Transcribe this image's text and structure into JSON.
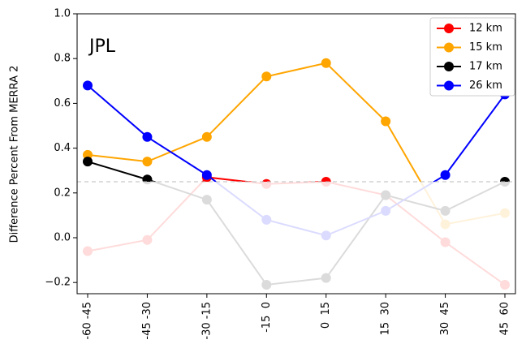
{
  "chart_data": {
    "type": "line",
    "annotation": "JPL",
    "y_label": "Difference Percent From MERRA 2",
    "categories": [
      "-60 -45",
      "-45 -30",
      "-30 -15",
      "-15  0",
      "0  15",
      "15  30",
      "30  45",
      "45  60"
    ],
    "series": [
      {
        "name": "12 km",
        "color": "#ff0000",
        "values": [
          -0.06,
          -0.01,
          0.27,
          0.24,
          0.25,
          0.19,
          -0.02,
          -0.21
        ]
      },
      {
        "name": "15 km",
        "color": "#ffa500",
        "values": [
          0.37,
          0.34,
          0.45,
          0.72,
          0.78,
          0.52,
          0.06,
          0.11
        ]
      },
      {
        "name": "17 km",
        "color": "#000000",
        "values": [
          0.34,
          0.26,
          0.17,
          -0.21,
          -0.18,
          0.19,
          0.12,
          0.25
        ]
      },
      {
        "name": "26 km",
        "color": "#0000ff",
        "values": [
          0.68,
          0.45,
          0.28,
          0.08,
          0.01,
          0.12,
          0.28,
          0.64
        ]
      }
    ],
    "reference_line": 0.25,
    "ylim": [
      -0.25,
      1.0
    ],
    "yticks": [
      {
        "value": -0.2,
        "label": "−0.2"
      },
      {
        "value": 0,
        "label": "0.0"
      },
      {
        "value": 0.2,
        "label": "0.2"
      },
      {
        "value": 0.4,
        "label": "0.4"
      },
      {
        "value": 0.6,
        "label": "0.6"
      },
      {
        "value": 0.8,
        "label": "0.8"
      },
      {
        "value": 1.0,
        "label": "1.0"
      }
    ],
    "legend": "upper right"
  }
}
